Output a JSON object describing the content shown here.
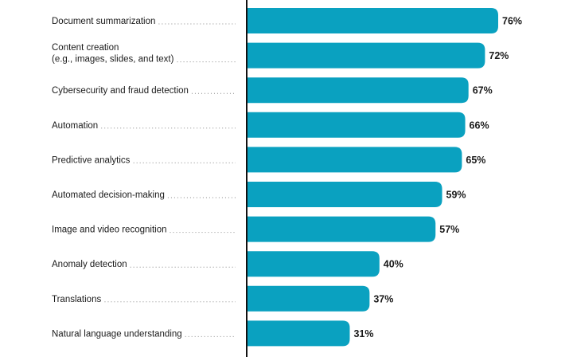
{
  "chart_data": {
    "type": "bar",
    "orientation": "horizontal",
    "bar_color": "#0aa1c0",
    "categories": [
      [
        "Document summarization"
      ],
      [
        "Content creation",
        "(e.g., images, slides, and text)"
      ],
      [
        "Cybersecurity and fraud detection"
      ],
      [
        "Automation"
      ],
      [
        "Predictive analytics"
      ],
      [
        "Automated decision-making"
      ],
      [
        "Image and video recognition"
      ],
      [
        "Anomaly detection"
      ],
      [
        "Translations"
      ],
      [
        "Natural language understanding"
      ]
    ],
    "values": [
      76,
      72,
      67,
      66,
      65,
      59,
      57,
      40,
      37,
      31
    ],
    "value_labels": [
      "76%",
      "72%",
      "67%",
      "66%",
      "65%",
      "59%",
      "57%",
      "40%",
      "37%",
      "31%"
    ],
    "xlim": [
      0,
      100
    ],
    "grid": false
  }
}
